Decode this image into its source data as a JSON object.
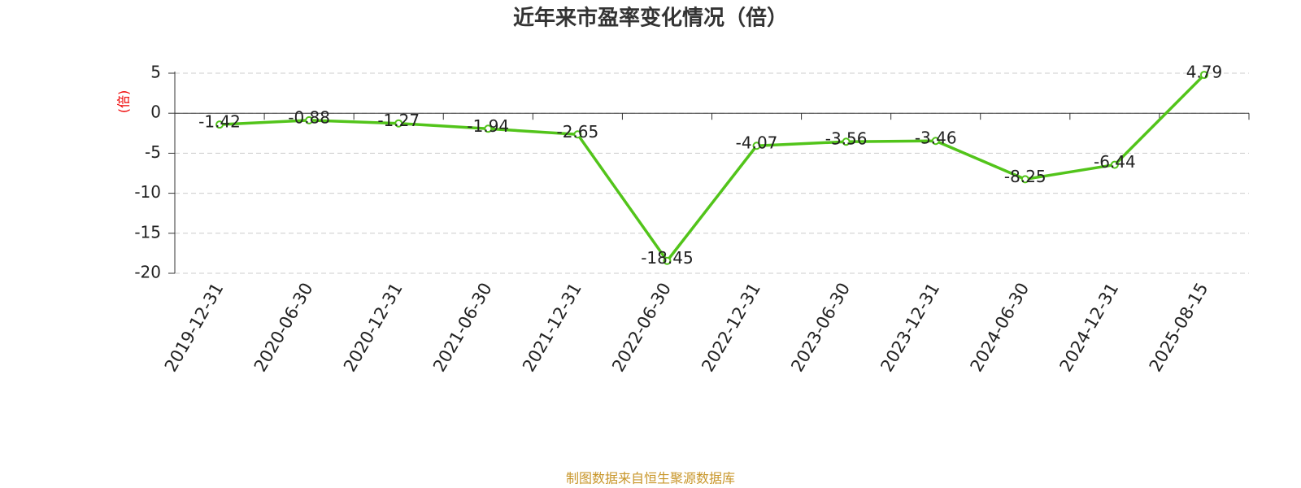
{
  "chart_data": {
    "type": "line",
    "title": "近年来市盈率变化情况（倍）",
    "y_label": "(倍)",
    "footer": "制图数据来自恒生聚源数据库",
    "categories": [
      "2019-12-31",
      "2020-06-30",
      "2020-12-31",
      "2021-06-30",
      "2021-12-31",
      "2022-06-30",
      "2022-12-31",
      "2023-06-30",
      "2023-12-31",
      "2024-06-30",
      "2024-12-31",
      "2025-08-15"
    ],
    "values": [
      -1.42,
      -0.88,
      -1.27,
      -1.94,
      -2.65,
      -18.45,
      -4.07,
      -3.56,
      -3.46,
      -8.25,
      -6.44,
      4.79
    ],
    "color": "#52c41a",
    "ylim": [
      -20,
      5
    ],
    "yticks": [
      -20,
      -15,
      -10,
      -5,
      0,
      5
    ],
    "grid": true
  }
}
